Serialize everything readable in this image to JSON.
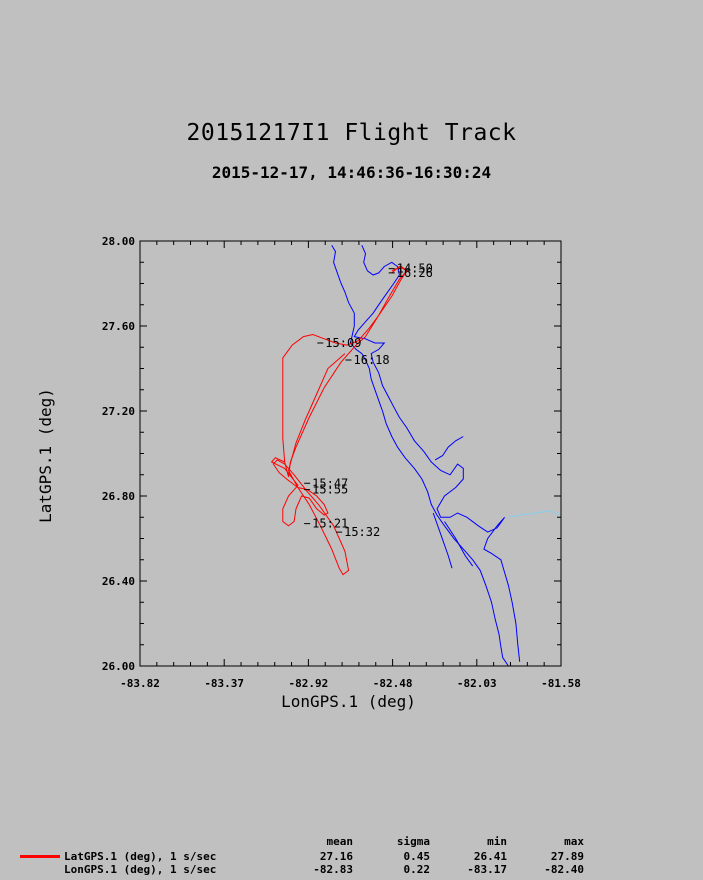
{
  "chart_data": {
    "type": "line",
    "title": "20151217I1 Flight Track",
    "subtitle": "2015-12-17, 14:46:36-16:30:24",
    "xlabel": "LonGPS.1 (deg)",
    "ylabel": "LatGPS.1 (deg)",
    "xlim": [
      -83.82,
      -81.58
    ],
    "ylim": [
      26.0,
      28.0
    ],
    "x_ticks": [
      "-83.82",
      "-83.37",
      "-82.92",
      "-82.48",
      "-82.03",
      "-81.58"
    ],
    "y_ticks": [
      "26.00",
      "26.40",
      "26.80",
      "27.20",
      "27.60",
      "28.00"
    ],
    "grid": false,
    "colors": {
      "track": "#ff0000",
      "coastline": "#0000ff",
      "border": "#87ceeb",
      "background": "#c0c0c0"
    },
    "series": [
      {
        "name": "flight-track",
        "color": "#ff0000",
        "points": [
          [
            -82.48,
            27.86
          ],
          [
            -82.43,
            27.88
          ],
          [
            -82.4,
            27.86
          ],
          [
            -82.44,
            27.82
          ],
          [
            -82.5,
            27.73
          ],
          [
            -82.55,
            27.65
          ],
          [
            -82.62,
            27.55
          ],
          [
            -82.67,
            27.51
          ],
          [
            -82.75,
            27.43
          ],
          [
            -82.84,
            27.31
          ],
          [
            -82.92,
            27.17
          ],
          [
            -82.99,
            27.03
          ],
          [
            -83.02,
            26.96
          ],
          [
            -83.03,
            26.89
          ],
          [
            -83.05,
            26.96
          ],
          [
            -83.06,
            27.07
          ],
          [
            -83.06,
            27.28
          ],
          [
            -83.06,
            27.45
          ],
          [
            -83.01,
            27.51
          ],
          [
            -82.95,
            27.55
          ],
          [
            -82.9,
            27.56
          ],
          [
            -82.84,
            27.54
          ],
          [
            -82.78,
            27.52
          ],
          [
            -82.72,
            27.51
          ],
          [
            -82.66,
            27.53
          ],
          [
            -82.6,
            27.59
          ],
          [
            -82.55,
            27.65
          ],
          [
            -82.48,
            27.74
          ],
          [
            -82.43,
            27.82
          ],
          [
            -82.4,
            27.86
          ],
          [
            -82.44,
            27.88
          ],
          [
            -82.48,
            27.85
          ]
        ]
      },
      {
        "name": "southern-pattern",
        "color": "#ff0000",
        "points": [
          [
            -82.73,
            27.47
          ],
          [
            -82.82,
            27.4
          ],
          [
            -82.88,
            27.28
          ],
          [
            -82.94,
            27.16
          ],
          [
            -82.99,
            27.05
          ],
          [
            -83.03,
            26.92
          ],
          [
            -82.98,
            26.84
          ],
          [
            -82.92,
            26.76
          ],
          [
            -82.86,
            26.66
          ],
          [
            -82.8,
            26.55
          ],
          [
            -82.76,
            26.46
          ],
          [
            -82.74,
            26.43
          ],
          [
            -82.71,
            26.45
          ],
          [
            -82.73,
            26.54
          ],
          [
            -82.79,
            26.66
          ],
          [
            -82.87,
            26.76
          ],
          [
            -82.93,
            26.82
          ],
          [
            -83.0,
            26.9
          ],
          [
            -83.05,
            26.95
          ],
          [
            -83.09,
            26.97
          ],
          [
            -83.11,
            26.95
          ],
          [
            -83.08,
            26.91
          ],
          [
            -83.04,
            26.88
          ],
          [
            -82.98,
            26.84
          ],
          [
            -82.93,
            26.83
          ],
          [
            -82.88,
            26.8
          ],
          [
            -82.84,
            26.76
          ],
          [
            -82.82,
            26.72
          ],
          [
            -82.84,
            26.71
          ],
          [
            -82.88,
            26.74
          ],
          [
            -82.92,
            26.79
          ],
          [
            -82.96,
            26.8
          ],
          [
            -82.99,
            26.74
          ],
          [
            -83.0,
            26.68
          ],
          [
            -83.03,
            26.66
          ],
          [
            -83.06,
            26.68
          ],
          [
            -83.06,
            26.74
          ],
          [
            -83.03,
            26.8
          ],
          [
            -82.98,
            26.85
          ],
          [
            -83.05,
            26.93
          ],
          [
            -83.12,
            26.96
          ],
          [
            -83.1,
            26.98
          ],
          [
            -83.05,
            26.96
          ]
        ]
      }
    ],
    "coastline": [
      [
        [
          -82.8,
          27.98
        ],
        [
          -82.78,
          27.95
        ],
        [
          -82.79,
          27.9
        ],
        [
          -82.77,
          27.85
        ],
        [
          -82.75,
          27.8
        ],
        [
          -82.73,
          27.76
        ],
        [
          -82.71,
          27.71
        ],
        [
          -82.68,
          27.66
        ],
        [
          -82.68,
          27.6
        ],
        [
          -82.69,
          27.56
        ],
        [
          -82.7,
          27.52
        ],
        [
          -82.67,
          27.49
        ],
        [
          -82.64,
          27.47
        ],
        [
          -82.62,
          27.44
        ],
        [
          -82.6,
          27.4
        ],
        [
          -82.59,
          27.35
        ],
        [
          -82.57,
          27.3
        ],
        [
          -82.55,
          27.25
        ],
        [
          -82.53,
          27.2
        ],
        [
          -82.51,
          27.14
        ],
        [
          -82.48,
          27.08
        ],
        [
          -82.45,
          27.03
        ],
        [
          -82.41,
          26.98
        ],
        [
          -82.36,
          26.93
        ],
        [
          -82.32,
          26.88
        ],
        [
          -82.29,
          26.82
        ],
        [
          -82.27,
          26.76
        ],
        [
          -82.24,
          26.71
        ],
        [
          -82.2,
          26.66
        ],
        [
          -82.15,
          26.6
        ],
        [
          -82.1,
          26.55
        ],
        [
          -82.05,
          26.5
        ],
        [
          -82.01,
          26.45
        ],
        [
          -81.98,
          26.38
        ],
        [
          -81.95,
          26.3
        ],
        [
          -81.93,
          26.22
        ],
        [
          -81.91,
          26.15
        ],
        [
          -81.9,
          26.09
        ],
        [
          -81.89,
          26.04
        ],
        [
          -81.86,
          26.0
        ]
      ],
      [
        [
          -82.64,
          27.98
        ],
        [
          -82.62,
          27.94
        ],
        [
          -82.63,
          27.9
        ],
        [
          -82.61,
          27.86
        ],
        [
          -82.58,
          27.84
        ],
        [
          -82.55,
          27.85
        ],
        [
          -82.52,
          27.88
        ],
        [
          -82.48,
          27.9
        ],
        [
          -82.45,
          27.88
        ],
        [
          -82.44,
          27.84
        ],
        [
          -82.47,
          27.8
        ],
        [
          -82.51,
          27.75
        ],
        [
          -82.55,
          27.7
        ],
        [
          -82.58,
          27.66
        ],
        [
          -82.62,
          27.62
        ],
        [
          -82.66,
          27.58
        ],
        [
          -82.68,
          27.55
        ],
        [
          -82.62,
          27.54
        ],
        [
          -82.57,
          27.52
        ],
        [
          -82.52,
          27.52
        ],
        [
          -82.55,
          27.49
        ],
        [
          -82.59,
          27.47
        ],
        [
          -82.58,
          27.43
        ],
        [
          -82.55,
          27.38
        ],
        [
          -82.53,
          27.32
        ],
        [
          -82.5,
          27.27
        ],
        [
          -82.47,
          27.22
        ],
        [
          -82.44,
          27.17
        ],
        [
          -82.4,
          27.12
        ],
        [
          -82.36,
          27.06
        ],
        [
          -82.31,
          27.01
        ],
        [
          -82.27,
          26.96
        ],
        [
          -82.22,
          26.92
        ],
        [
          -82.17,
          26.9
        ],
        [
          -82.13,
          26.95
        ],
        [
          -82.1,
          26.93
        ],
        [
          -82.1,
          26.88
        ],
        [
          -82.14,
          26.84
        ],
        [
          -82.2,
          26.8
        ],
        [
          -82.24,
          26.74
        ],
        [
          -82.22,
          26.7
        ],
        [
          -82.17,
          26.7
        ],
        [
          -82.13,
          26.72
        ],
        [
          -82.08,
          26.7
        ],
        [
          -82.02,
          26.66
        ],
        [
          -81.97,
          26.63
        ],
        [
          -81.92,
          26.65
        ],
        [
          -81.88,
          26.7
        ],
        [
          -81.92,
          26.66
        ],
        [
          -81.97,
          26.6
        ],
        [
          -81.99,
          26.55
        ],
        [
          -81.95,
          26.53
        ],
        [
          -81.9,
          26.5
        ],
        [
          -81.88,
          26.44
        ],
        [
          -81.86,
          26.38
        ],
        [
          -81.84,
          26.3
        ],
        [
          -81.82,
          26.2
        ],
        [
          -81.81,
          26.1
        ],
        [
          -81.8,
          26.02
        ]
      ],
      [
        [
          -82.25,
          26.97
        ],
        [
          -82.21,
          26.99
        ],
        [
          -82.18,
          27.03
        ],
        [
          -82.14,
          27.06
        ],
        [
          -82.1,
          27.08
        ]
      ],
      [
        [
          -82.26,
          26.72
        ],
        [
          -82.22,
          26.62
        ],
        [
          -82.18,
          26.52
        ],
        [
          -82.16,
          26.46
        ]
      ],
      [
        [
          -82.2,
          26.68
        ],
        [
          -82.14,
          26.6
        ],
        [
          -82.09,
          26.52
        ],
        [
          -82.05,
          26.47
        ]
      ]
    ],
    "border": [
      [
        -81.86,
        26.7
      ],
      [
        -81.8,
        26.71
      ],
      [
        -81.72,
        26.72
      ],
      [
        -81.64,
        26.73
      ],
      [
        -81.58,
        26.71
      ]
    ],
    "time_labels": [
      {
        "label": "14:50",
        "x": -82.47,
        "y": 27.87
      },
      {
        "label": "16:26",
        "x": -82.47,
        "y": 27.85
      },
      {
        "label": "15:09",
        "x": -82.85,
        "y": 27.52
      },
      {
        "label": "16:18",
        "x": -82.7,
        "y": 27.44
      },
      {
        "label": "15:47",
        "x": -82.92,
        "y": 26.86
      },
      {
        "label": "15:55",
        "x": -82.92,
        "y": 26.83
      },
      {
        "label": "15:21",
        "x": -82.92,
        "y": 26.67
      },
      {
        "label": "15:32",
        "x": -82.75,
        "y": 26.63
      }
    ],
    "legend": {
      "headers": [
        "mean",
        "sigma",
        "min",
        "max"
      ],
      "rows": [
        {
          "name": "LatGPS.1 (deg), 1 s/sec",
          "mean": "27.16",
          "sigma": "0.45",
          "min": "26.41",
          "max": "27.89",
          "color": "#ff0000"
        },
        {
          "name": "LonGPS.1 (deg), 1 s/sec",
          "mean": "-82.83",
          "sigma": "0.22",
          "min": "-83.17",
          "max": "-82.40"
        }
      ]
    }
  }
}
